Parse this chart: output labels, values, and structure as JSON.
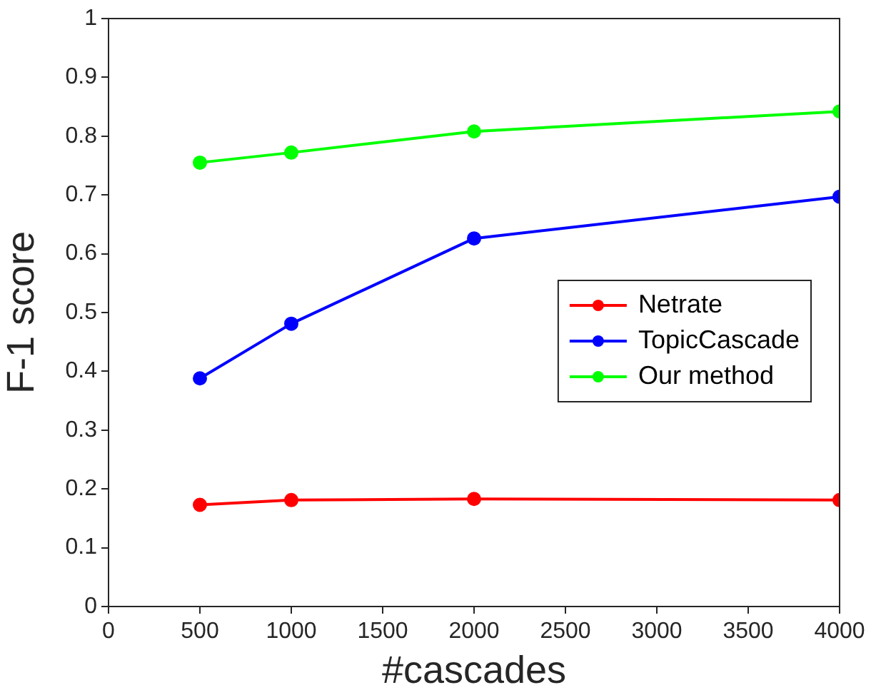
{
  "chart_data": {
    "type": "line",
    "xlabel": "#cascades",
    "ylabel": "F-1 score",
    "x": [
      500,
      1000,
      2000,
      4000
    ],
    "series": [
      {
        "name": "Netrate",
        "color": "#ff0000",
        "values": [
          0.173,
          0.181,
          0.183,
          0.181
        ]
      },
      {
        "name": "TopicCascade",
        "color": "#0000ff",
        "values": [
          0.388,
          0.481,
          0.626,
          0.697
        ]
      },
      {
        "name": "Our method",
        "color": "#00ff00",
        "values": [
          0.755,
          0.772,
          0.808,
          0.842
        ]
      }
    ],
    "xlim": [
      0,
      4000
    ],
    "xticks": [
      0,
      500,
      1000,
      1500,
      2000,
      2500,
      3000,
      3500,
      4000
    ],
    "ylim": [
      0,
      1
    ],
    "yticks": [
      0,
      0.1,
      0.2,
      0.3,
      0.4,
      0.5,
      0.6,
      0.7,
      0.8,
      0.9,
      1
    ],
    "grid": false,
    "legend": "right",
    "marker": "circle",
    "line_style": "solid"
  }
}
